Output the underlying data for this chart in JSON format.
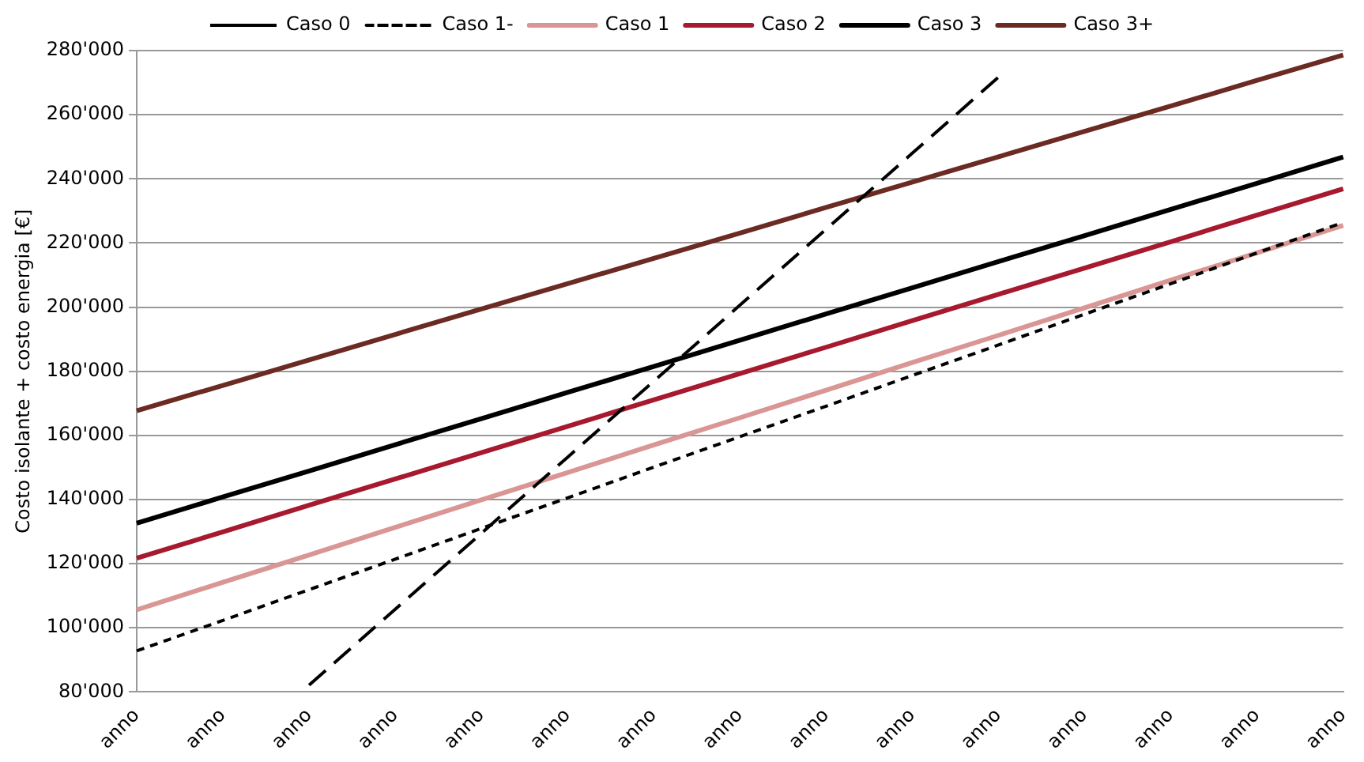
{
  "chart_data": {
    "type": "line",
    "ylabel": "Costo isolante + costo energia [€]",
    "categories": [
      "anno",
      "anno",
      "anno",
      "anno",
      "anno",
      "anno",
      "anno",
      "anno",
      "anno",
      "anno",
      "anno",
      "anno",
      "anno",
      "anno",
      "anno"
    ],
    "series": [
      {
        "name": "Caso 0",
        "color": "#000000",
        "line_style": "dashed",
        "values": [
          null,
          null,
          82100,
          105800,
          129500,
          153200,
          176900,
          200600,
          224300,
          248000,
          271700,
          null,
          null,
          null,
          null
        ]
      },
      {
        "name": "Caso 1-",
        "color": "#000000",
        "line_style": "dotted",
        "values": [
          92800,
          102300,
          111900,
          121400,
          131000,
          140500,
          150100,
          159600,
          169100,
          178700,
          188200,
          197800,
          207300,
          216900,
          226400
        ]
      },
      {
        "name": "Caso 1",
        "color": "#d99694",
        "line_style": "solid",
        "values": [
          105600,
          114200,
          122700,
          131300,
          139900,
          148400,
          157000,
          165500,
          174100,
          182700,
          191200,
          199800,
          208400,
          216900,
          225500
        ]
      },
      {
        "name": "Caso 2",
        "color": "#a6192e",
        "line_style": "solid",
        "values": [
          121700,
          129900,
          138200,
          146400,
          154600,
          162800,
          171100,
          179300,
          187500,
          195800,
          204000,
          212200,
          220400,
          228700,
          236900
        ]
      },
      {
        "name": "Caso 3",
        "color": "#000000",
        "line_style": "solid",
        "values": [
          132600,
          140800,
          148900,
          157100,
          165200,
          173400,
          181500,
          189700,
          197900,
          206000,
          214200,
          222300,
          230500,
          238600,
          246800
        ]
      },
      {
        "name": "Caso 3+",
        "color": "#6b2a22",
        "line_style": "solid",
        "values": [
          167700,
          175600,
          183500,
          191500,
          199400,
          207300,
          215200,
          223100,
          231100,
          239000,
          246900,
          254800,
          262700,
          270700,
          278600
        ]
      }
    ],
    "ylim": [
      80000,
      280000
    ],
    "yticks": [
      {
        "value": 80000,
        "label": "80'000"
      },
      {
        "value": 100000,
        "label": "100'000"
      },
      {
        "value": 120000,
        "label": "120'000"
      },
      {
        "value": 140000,
        "label": "140'000"
      },
      {
        "value": 160000,
        "label": "160'000"
      },
      {
        "value": 180000,
        "label": "180'000"
      },
      {
        "value": 200000,
        "label": "200'000"
      },
      {
        "value": 220000,
        "label": "220'000"
      },
      {
        "value": 240000,
        "label": "240'000"
      },
      {
        "value": 260000,
        "label": "260'000"
      },
      {
        "value": 280000,
        "label": "280'000"
      }
    ],
    "grid": "y",
    "legend": "top",
    "marker": "none"
  }
}
